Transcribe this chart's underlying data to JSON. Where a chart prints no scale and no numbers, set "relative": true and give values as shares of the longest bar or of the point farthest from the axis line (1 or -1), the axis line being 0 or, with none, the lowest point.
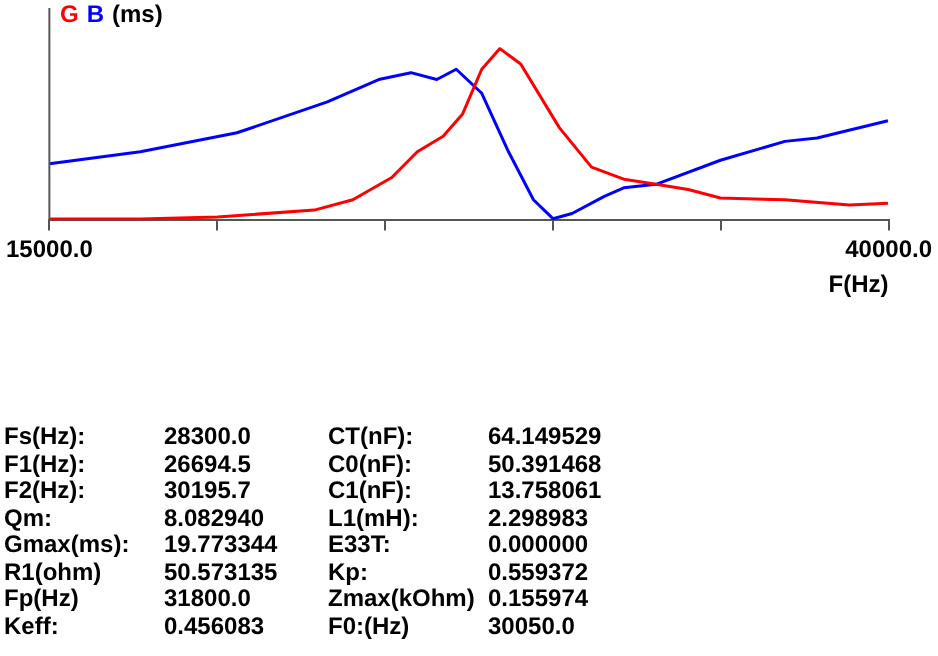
{
  "chart_data": {
    "type": "line",
    "ylabel": "(ms)",
    "xlabel": "F(Hz)",
    "relative": true,
    "legend": "top left",
    "marker": "none",
    "grid": false,
    "xlim": [
      15000,
      40000
    ],
    "xticks": [
      {
        "value": 15000,
        "label": "15000.0"
      },
      {
        "value": 20000,
        "label": null
      },
      {
        "value": 25000,
        "label": null
      },
      {
        "value": 30000,
        "label": null
      },
      {
        "value": 35000,
        "label": null
      },
      {
        "value": 40000,
        "label": "40000.0"
      }
    ],
    "series": [
      {
        "name": "G",
        "color": "#ff0000",
        "x": [
          15000,
          17710,
          20010,
          22890,
          24040,
          25200,
          25960,
          26730,
          27310,
          27880,
          28420,
          29040,
          30190,
          31150,
          32110,
          33070,
          34030,
          34990,
          36910,
          38830,
          39980
        ],
        "values": [
          0.008,
          0.008,
          0.02,
          0.06,
          0.12,
          0.25,
          0.4,
          0.49,
          0.62,
          0.88,
          1,
          0.91,
          0.54,
          0.31,
          0.24,
          0.21,
          0.18,
          0.13,
          0.12,
          0.09,
          0.1
        ]
      },
      {
        "name": "B",
        "color": "#0000ff",
        "x": [
          15000,
          17710,
          20590,
          23280,
          24810,
          25770,
          26540,
          27120,
          27880,
          28650,
          29420,
          30000,
          30570,
          31530,
          32110,
          33070,
          34990,
          36910,
          37870,
          39980
        ],
        "values": [
          0.33,
          0.4,
          0.51,
          0.69,
          0.82,
          0.86,
          0.82,
          0.88,
          0.74,
          0.41,
          0.12,
          0.01,
          0.04,
          0.14,
          0.19,
          0.21,
          0.35,
          0.46,
          0.48,
          0.58
        ]
      }
    ],
    "annotations": [
      "Fs(Hz):",
      "28300.0",
      "CT(nF):",
      "64.149529",
      "F1(Hz):",
      "26694.5",
      "C0(nF):",
      "50.391468",
      "F2(Hz):",
      "30195.7",
      "C1(nF):",
      "13.758061",
      "Qm:",
      "8.082940",
      "L1(mH):",
      "2.298983",
      "Gmax(ms):",
      "19.773344",
      "E33T:",
      "0.000000",
      "R1(ohm)",
      "50.573135",
      "Kp:",
      "0.559372",
      "Fp(Hz)",
      "31800.0",
      "Zmax(kOhm)",
      "0.155974",
      "Keff:",
      "0.456083",
      "F0:(Hz)",
      "30050.0"
    ]
  }
}
